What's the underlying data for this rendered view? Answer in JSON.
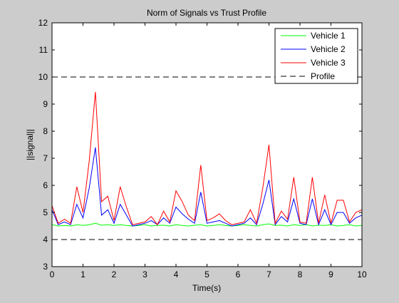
{
  "chart_data": {
    "type": "line",
    "title": "Norm of Signals vs Trust Profile",
    "xlabel": "Time(s)",
    "ylabel": "||signal||",
    "xlim": [
      0,
      10
    ],
    "ylim": [
      3,
      12
    ],
    "xticks": [
      0,
      1,
      2,
      3,
      4,
      5,
      6,
      7,
      8,
      9,
      10
    ],
    "yticks": [
      3,
      4,
      5,
      6,
      7,
      8,
      9,
      10,
      11,
      12
    ],
    "grid": false,
    "legend_position": "top-right",
    "x": [
      0,
      0.2,
      0.4,
      0.6,
      0.8,
      1.0,
      1.2,
      1.4,
      1.6,
      1.8,
      2.0,
      2.2,
      2.4,
      2.6,
      2.8,
      3.0,
      3.2,
      3.4,
      3.6,
      3.8,
      4.0,
      4.2,
      4.4,
      4.6,
      4.8,
      5.0,
      5.2,
      5.4,
      5.6,
      5.8,
      6.0,
      6.2,
      6.4,
      6.6,
      6.8,
      7.0,
      7.2,
      7.4,
      7.6,
      7.8,
      8.0,
      8.2,
      8.4,
      8.6,
      8.8,
      9.0,
      9.2,
      9.4,
      9.6,
      9.8,
      10.0
    ],
    "series": [
      {
        "name": "Vehicle 1",
        "color": "#00ff00",
        "dash": "solid",
        "values": [
          4.55,
          4.5,
          4.52,
          4.5,
          4.55,
          4.52,
          4.55,
          4.6,
          4.53,
          4.55,
          4.52,
          4.55,
          4.52,
          4.5,
          4.52,
          4.55,
          4.5,
          4.52,
          4.53,
          4.5,
          4.55,
          4.52,
          4.5,
          4.53,
          4.55,
          4.5,
          4.52,
          4.55,
          4.52,
          4.5,
          4.52,
          4.55,
          4.52,
          4.5,
          4.55,
          4.58,
          4.52,
          4.53,
          4.5,
          4.55,
          4.52,
          4.55,
          4.5,
          4.53,
          4.52,
          4.55,
          4.5,
          4.52,
          4.55,
          4.5,
          4.52
        ]
      },
      {
        "name": "Vehicle 2",
        "color": "#0000ff",
        "dash": "solid",
        "values": [
          5.1,
          4.55,
          4.65,
          4.55,
          5.3,
          4.8,
          5.9,
          7.4,
          4.9,
          5.1,
          4.6,
          5.3,
          4.9,
          4.5,
          4.55,
          4.6,
          4.7,
          4.55,
          4.8,
          4.6,
          5.2,
          4.95,
          4.75,
          4.6,
          5.75,
          4.6,
          4.65,
          4.7,
          4.6,
          4.5,
          4.55,
          4.6,
          4.8,
          4.55,
          5.3,
          6.2,
          4.55,
          4.85,
          4.65,
          5.5,
          4.6,
          4.55,
          5.5,
          4.55,
          5.1,
          4.55,
          5.0,
          5.0,
          4.6,
          4.8,
          4.9
        ]
      },
      {
        "name": "Vehicle 3",
        "color": "#ff0000",
        "dash": "solid",
        "values": [
          5.25,
          4.6,
          4.75,
          4.6,
          5.95,
          5.0,
          6.9,
          9.45,
          5.4,
          5.6,
          4.7,
          5.95,
          5.2,
          4.55,
          4.6,
          4.65,
          4.85,
          4.55,
          5.05,
          4.65,
          5.8,
          5.4,
          4.9,
          4.7,
          6.75,
          4.7,
          4.8,
          4.95,
          4.7,
          4.55,
          4.6,
          4.65,
          5.1,
          4.6,
          5.9,
          7.5,
          4.6,
          5.05,
          4.75,
          6.3,
          4.65,
          4.6,
          6.3,
          4.6,
          5.65,
          4.6,
          5.45,
          5.45,
          4.65,
          5.0,
          5.1
        ]
      },
      {
        "name": "Profile",
        "color": "#000000",
        "dash": "dashed",
        "x": [
          0,
          10
        ],
        "values": [
          10,
          10
        ]
      },
      {
        "name": "",
        "color": "#000000",
        "dash": "dashed",
        "x": [
          0,
          10
        ],
        "values": [
          4,
          4
        ]
      }
    ]
  }
}
